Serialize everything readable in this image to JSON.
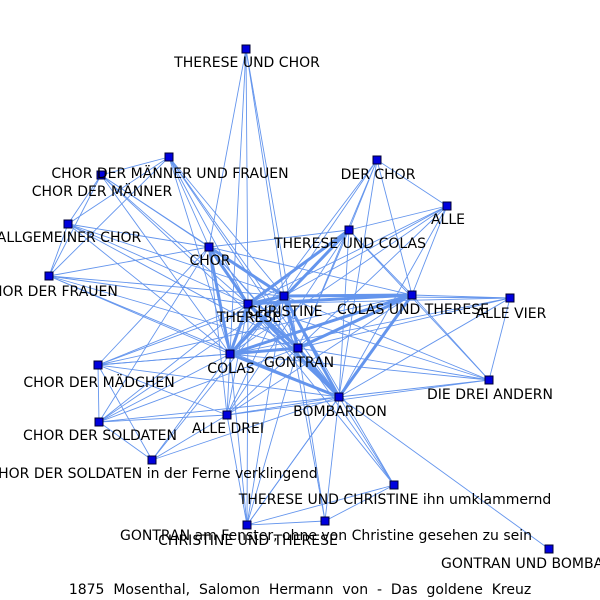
{
  "caption": "1875  Mosenthal,  Salomon  Hermann  von  -  Das  goldene  Kreuz",
  "colors": {
    "edge": "#6495ed",
    "node_fill": "#0000dd",
    "node_stroke": "#000033",
    "label": "#000000"
  },
  "nodes": [
    {
      "id": "therese_chor",
      "label": "THERESE UND CHOR"
    },
    {
      "id": "chor_mf",
      "label": "CHOR DER MÄNNER UND FRAUEN"
    },
    {
      "id": "chor_m",
      "label": "CHOR DER MÄNNER"
    },
    {
      "id": "der_chor",
      "label": "DER CHOR"
    },
    {
      "id": "alle",
      "label": "ALLE"
    },
    {
      "id": "allg_chor",
      "label": "ALLGEMEINER CHOR"
    },
    {
      "id": "ther_colas",
      "label": "THERESE UND COLAS"
    },
    {
      "id": "chor",
      "label": "CHOR"
    },
    {
      "id": "chor_frauen",
      "label": "CHOR DER FRAUEN"
    },
    {
      "id": "christine",
      "label": "CHRISTINE"
    },
    {
      "id": "colas_ther",
      "label": "COLAS UND THERESE"
    },
    {
      "id": "alle_vier",
      "label": "ALLE VIER"
    },
    {
      "id": "therese",
      "label": "THERESE"
    },
    {
      "id": "gontran",
      "label": "GONTRAN"
    },
    {
      "id": "colas",
      "label": "COLAS"
    },
    {
      "id": "chor_maedchen",
      "label": "CHOR DER MÄDCHEN"
    },
    {
      "id": "drei_andern",
      "label": "DIE DREI ANDERN"
    },
    {
      "id": "bombardon",
      "label": "BOMBARDON"
    },
    {
      "id": "alle_drei",
      "label": "ALLE DREI"
    },
    {
      "id": "chor_soldaten",
      "label": "CHOR DER SOLDATEN"
    },
    {
      "id": "chor_sold_ferne",
      "label": "CHOR DER SOLDATEN in der Ferne verklingend"
    },
    {
      "id": "ther_christ_umkl",
      "label": "THERESE UND CHRISTINE ihn umklammernd"
    },
    {
      "id": "gontran_fenster",
      "label": "GONTRAN am Fenster, ohne von Christine gesehen zu sein"
    },
    {
      "id": "christ_ther",
      "label": "CHRISTINE UND THERESE"
    },
    {
      "id": "gontran_bomb",
      "label": "GONTRAN UND BOMBARDON"
    }
  ],
  "edges": [
    [
      "therese_chor",
      "chor"
    ],
    [
      "therese_chor",
      "christine"
    ],
    [
      "therese_chor",
      "therese"
    ],
    [
      "therese_chor",
      "colas"
    ],
    [
      "therese_chor",
      "gontran"
    ],
    [
      "chor_mf",
      "chor_m"
    ],
    [
      "chor_mf",
      "allg_chor"
    ],
    [
      "chor_mf",
      "chor"
    ],
    [
      "chor_mf",
      "christine"
    ],
    [
      "chor_mf",
      "therese"
    ],
    [
      "chor_mf",
      "colas"
    ],
    [
      "chor_mf",
      "gontran"
    ],
    [
      "chor_mf",
      "bombardon"
    ],
    [
      "chor_mf",
      "chor_frauen"
    ],
    [
      "chor_m",
      "allg_chor"
    ],
    [
      "chor_m",
      "chor"
    ],
    [
      "chor_m",
      "christine"
    ],
    [
      "chor_m",
      "therese"
    ],
    [
      "chor_m",
      "colas"
    ],
    [
      "chor_m",
      "bombardon"
    ],
    [
      "chor_m",
      "chor_frauen"
    ],
    [
      "der_chor",
      "alle"
    ],
    [
      "der_chor",
      "ther_colas"
    ],
    [
      "der_chor",
      "christine"
    ],
    [
      "der_chor",
      "colas_ther"
    ],
    [
      "der_chor",
      "gontran"
    ],
    [
      "der_chor",
      "colas"
    ],
    [
      "der_chor",
      "bombardon"
    ],
    [
      "alle",
      "ther_colas"
    ],
    [
      "alle",
      "christine"
    ],
    [
      "alle",
      "colas_ther"
    ],
    [
      "alle",
      "gontran"
    ],
    [
      "alle",
      "colas"
    ],
    [
      "alle",
      "bombardon"
    ],
    [
      "alle",
      "therese"
    ],
    [
      "allg_chor",
      "chor"
    ],
    [
      "allg_chor",
      "chor_frauen"
    ],
    [
      "allg_chor",
      "christine"
    ],
    [
      "allg_chor",
      "therese"
    ],
    [
      "allg_chor",
      "colas"
    ],
    [
      "allg_chor",
      "gontran"
    ],
    [
      "ther_colas",
      "christine"
    ],
    [
      "ther_colas",
      "colas_ther"
    ],
    [
      "ther_colas",
      "therese"
    ],
    [
      "ther_colas",
      "colas"
    ],
    [
      "ther_colas",
      "gontran"
    ],
    [
      "ther_colas",
      "bombardon"
    ],
    [
      "ther_colas",
      "chor"
    ],
    [
      "ther_colas",
      "drei_andern"
    ],
    [
      "ther_colas",
      "alle_drei"
    ],
    [
      "chor",
      "christine"
    ],
    [
      "chor",
      "therese"
    ],
    [
      "chor",
      "colas"
    ],
    [
      "chor",
      "gontran"
    ],
    [
      "chor",
      "bombardon"
    ],
    [
      "chor",
      "chor_frauen"
    ],
    [
      "chor",
      "chor_maedchen"
    ],
    [
      "chor",
      "colas_ther"
    ],
    [
      "chor",
      "alle_drei"
    ],
    [
      "chor",
      "chor_soldaten"
    ],
    [
      "chor_frauen",
      "christine"
    ],
    [
      "chor_frauen",
      "therese"
    ],
    [
      "chor_frauen",
      "colas"
    ],
    [
      "chor_frauen",
      "gontran"
    ],
    [
      "chor_frauen",
      "bombardon"
    ],
    [
      "christine",
      "colas_ther"
    ],
    [
      "christine",
      "alle_vier"
    ],
    [
      "christine",
      "therese"
    ],
    [
      "christine",
      "gontran"
    ],
    [
      "christine",
      "colas"
    ],
    [
      "christine",
      "bombardon"
    ],
    [
      "christine",
      "alle_drei"
    ],
    [
      "christine",
      "chor_maedchen"
    ],
    [
      "christine",
      "chor_soldaten"
    ],
    [
      "christine",
      "chor_sold_ferne"
    ],
    [
      "christine",
      "christ_ther"
    ],
    [
      "christine",
      "gontran_fenster"
    ],
    [
      "christine",
      "drei_andern"
    ],
    [
      "christine",
      "ther_christ_umkl"
    ],
    [
      "colas_ther",
      "alle_vier"
    ],
    [
      "colas_ther",
      "therese"
    ],
    [
      "colas_ther",
      "gontran"
    ],
    [
      "colas_ther",
      "colas"
    ],
    [
      "colas_ther",
      "bombardon"
    ],
    [
      "colas_ther",
      "drei_andern"
    ],
    [
      "colas_ther",
      "alle_drei"
    ],
    [
      "colas_ther",
      "chor_maedchen"
    ],
    [
      "alle_vier",
      "gontran"
    ],
    [
      "alle_vier",
      "colas"
    ],
    [
      "alle_vier",
      "bombardon"
    ],
    [
      "alle_vier",
      "therese"
    ],
    [
      "alle_vier",
      "drei_andern"
    ],
    [
      "therese",
      "gontran"
    ],
    [
      "therese",
      "colas"
    ],
    [
      "therese",
      "bombardon"
    ],
    [
      "therese",
      "alle_drei"
    ],
    [
      "therese",
      "chor_maedchen"
    ],
    [
      "therese",
      "chor_soldaten"
    ],
    [
      "therese",
      "christ_ther"
    ],
    [
      "therese",
      "drei_andern"
    ],
    [
      "therese",
      "ther_christ_umkl"
    ],
    [
      "gontran",
      "colas"
    ],
    [
      "gontran",
      "bombardon"
    ],
    [
      "gontran",
      "alle_drei"
    ],
    [
      "gontran",
      "drei_andern"
    ],
    [
      "gontran",
      "chor_maedchen"
    ],
    [
      "gontran",
      "gontran_fenster"
    ],
    [
      "gontran",
      "christ_ther"
    ],
    [
      "gontran",
      "ther_christ_umkl"
    ],
    [
      "gontran",
      "chor_soldaten"
    ],
    [
      "colas",
      "bombardon"
    ],
    [
      "colas",
      "alle_drei"
    ],
    [
      "colas",
      "chor_maedchen"
    ],
    [
      "colas",
      "chor_soldaten"
    ],
    [
      "colas",
      "chor_sold_ferne"
    ],
    [
      "colas",
      "drei_andern"
    ],
    [
      "colas",
      "christ_ther"
    ],
    [
      "chor_maedchen",
      "chor_soldaten"
    ],
    [
      "chor_maedchen",
      "alle_drei"
    ],
    [
      "chor_maedchen",
      "bombardon"
    ],
    [
      "chor_maedchen",
      "chor_sold_ferne"
    ],
    [
      "drei_andern",
      "bombardon"
    ],
    [
      "drei_andern",
      "alle_drei"
    ],
    [
      "bombardon",
      "alle_drei"
    ],
    [
      "bombardon",
      "ther_christ_umkl"
    ],
    [
      "bombardon",
      "gontran_fenster"
    ],
    [
      "bombardon",
      "christ_ther"
    ],
    [
      "bombardon",
      "gontran_bomb"
    ],
    [
      "bombardon",
      "chor_soldaten"
    ],
    [
      "bombardon",
      "chor_sold_ferne"
    ],
    [
      "alle_drei",
      "chor_soldaten"
    ],
    [
      "alle_drei",
      "christ_ther"
    ],
    [
      "alle_drei",
      "chor_sold_ferne"
    ],
    [
      "chor_soldaten",
      "chor_sold_ferne"
    ],
    [
      "ther_christ_umkl",
      "christ_ther"
    ],
    [
      "ther_christ_umkl",
      "gontran_fenster"
    ],
    [
      "gontran_fenster",
      "christ_ther"
    ],
    [
      "christ_ther",
      "colas_ther"
    ]
  ],
  "heavy_edges": [
    [
      "christine",
      "colas_ther"
    ],
    [
      "christine",
      "therese"
    ],
    [
      "christine",
      "gontran"
    ],
    [
      "christine",
      "colas"
    ],
    [
      "christine",
      "bombardon"
    ],
    [
      "therese",
      "colas"
    ],
    [
      "therese",
      "gontran"
    ],
    [
      "therese",
      "bombardon"
    ],
    [
      "gontran",
      "colas"
    ],
    [
      "gontran",
      "bombardon"
    ],
    [
      "colas",
      "bombardon"
    ],
    [
      "colas_ther",
      "therese"
    ],
    [
      "colas_ther",
      "colas"
    ],
    [
      "colas_ther",
      "bombardon"
    ],
    [
      "ther_colas",
      "colas"
    ],
    [
      "ther_colas",
      "therese"
    ],
    [
      "chor",
      "therese"
    ],
    [
      "chor",
      "colas"
    ],
    [
      "chor",
      "christine"
    ],
    [
      "colas_ther",
      "gontran"
    ]
  ]
}
